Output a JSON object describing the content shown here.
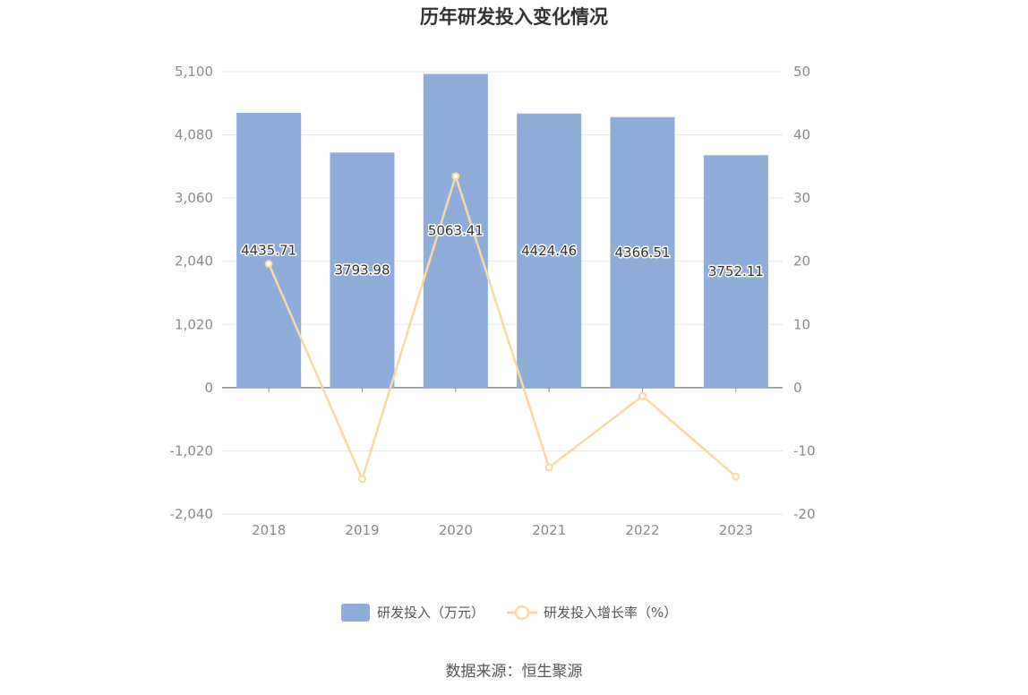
{
  "chart_data": {
    "type": "bar",
    "title": "历年研发投入变化情况",
    "categories": [
      "2018",
      "2019",
      "2020",
      "2021",
      "2022",
      "2023"
    ],
    "series": [
      {
        "name": "研发投入（万元）",
        "type": "bar",
        "axis": "left",
        "values": [
          4435.71,
          3793.98,
          5063.41,
          4424.46,
          4366.51,
          3752.11
        ],
        "labels": [
          "4435.71",
          "3793.98",
          "5063.41",
          "4424.46",
          "4366.51",
          "3752.11"
        ],
        "color": "#8eadd9"
      },
      {
        "name": "研发投入增长率（%）",
        "type": "line",
        "axis": "right",
        "values": [
          19.6,
          -14.47,
          33.46,
          -12.62,
          -1.31,
          -14.07
        ],
        "color": "#f8d9a0"
      }
    ],
    "y_left": {
      "ylim": [
        -2040,
        5100
      ],
      "ticks": [
        5100,
        4080,
        3060,
        2040,
        1020,
        0,
        -1020,
        -2040
      ],
      "tick_labels": [
        "5,100",
        "4,080",
        "3,060",
        "2,040",
        "1,020",
        "0",
        "-1,020",
        "-2,040"
      ]
    },
    "y_right": {
      "ylim": [
        -20,
        50
      ],
      "ticks": [
        50,
        40,
        30,
        20,
        10,
        0,
        -10,
        -20
      ],
      "tick_labels": [
        "50",
        "40",
        "30",
        "20",
        "10",
        "0",
        "-10",
        "-20"
      ]
    },
    "grid": true,
    "legend_position": "bottom-center",
    "source": "数据来源：恒生聚源"
  }
}
